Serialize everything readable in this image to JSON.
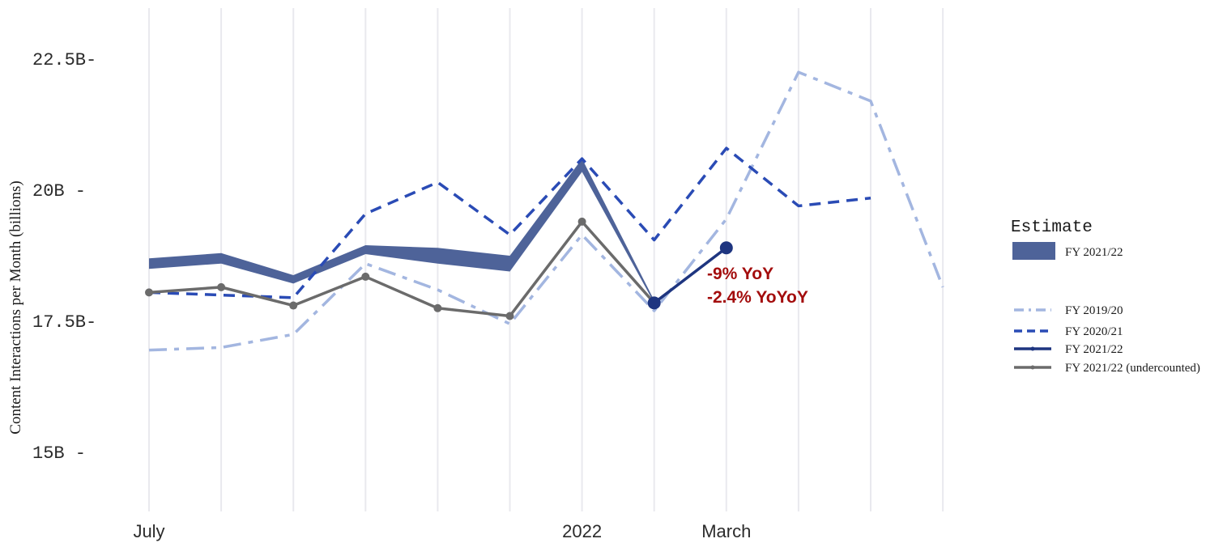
{
  "chart_data": {
    "type": "line",
    "ylabel": "Content Interactions per Month (billions)",
    "ylim": [
      14,
      23.5
    ],
    "y_ticks": [
      {
        "value": 15,
        "label": "15B  -"
      },
      {
        "value": 17.5,
        "label": "17.5B-"
      },
      {
        "value": 20,
        "label": "20B  -"
      },
      {
        "value": 22.5,
        "label": "22.5B-"
      }
    ],
    "x_ticks": [
      {
        "index": 0,
        "label": "July"
      },
      {
        "index": 6,
        "label": "2022"
      },
      {
        "index": 8,
        "label": "March"
      }
    ],
    "x_months": 12,
    "grid": "vertical",
    "series": [
      {
        "name": "FY 2019/20",
        "style": "dashdot",
        "color": "#a3b6e0",
        "values": [
          16.95,
          17.0,
          17.25,
          18.6,
          18.1,
          17.45,
          19.15,
          17.7,
          19.45,
          22.25,
          21.7,
          18.15
        ]
      },
      {
        "name": "FY 2020/21",
        "style": "dashed",
        "color": "#2a4bb5",
        "values": [
          18.05,
          18.0,
          17.95,
          19.55,
          20.15,
          19.15,
          20.6,
          19.05,
          20.8,
          19.7,
          19.85,
          null
        ]
      },
      {
        "name": "FY 2021/22 (undercounted)",
        "style": "solid",
        "color": "#6b6b6b",
        "markers": true,
        "values": [
          18.05,
          18.15,
          17.8,
          18.35,
          17.75,
          17.6,
          19.4,
          17.85,
          null,
          null,
          null,
          null
        ]
      },
      {
        "name": "FY 2021/22",
        "style": "solid",
        "color": "#1e3580",
        "markers": true,
        "values": [
          null,
          null,
          null,
          null,
          null,
          null,
          null,
          17.85,
          18.9,
          null,
          null,
          null
        ]
      }
    ],
    "band": {
      "name": "FY 2021/22",
      "color": "#4e6399",
      "lower": [
        18.5,
        18.6,
        18.22,
        18.78,
        18.6,
        18.45,
        20.35,
        17.85
      ],
      "upper": [
        18.7,
        18.8,
        18.38,
        18.95,
        18.9,
        18.75,
        20.6,
        17.9
      ]
    },
    "annotations": [
      "-9% YoY",
      "-2.4% YoYoY"
    ],
    "legend": {
      "title": "Estimate",
      "fill_entry": "FY 2021/22",
      "line_entries": [
        "FY 2019/20",
        "FY 2020/21",
        "FY 2021/22",
        "FY 2021/22 (undercounted)"
      ],
      "placement": "right"
    }
  }
}
